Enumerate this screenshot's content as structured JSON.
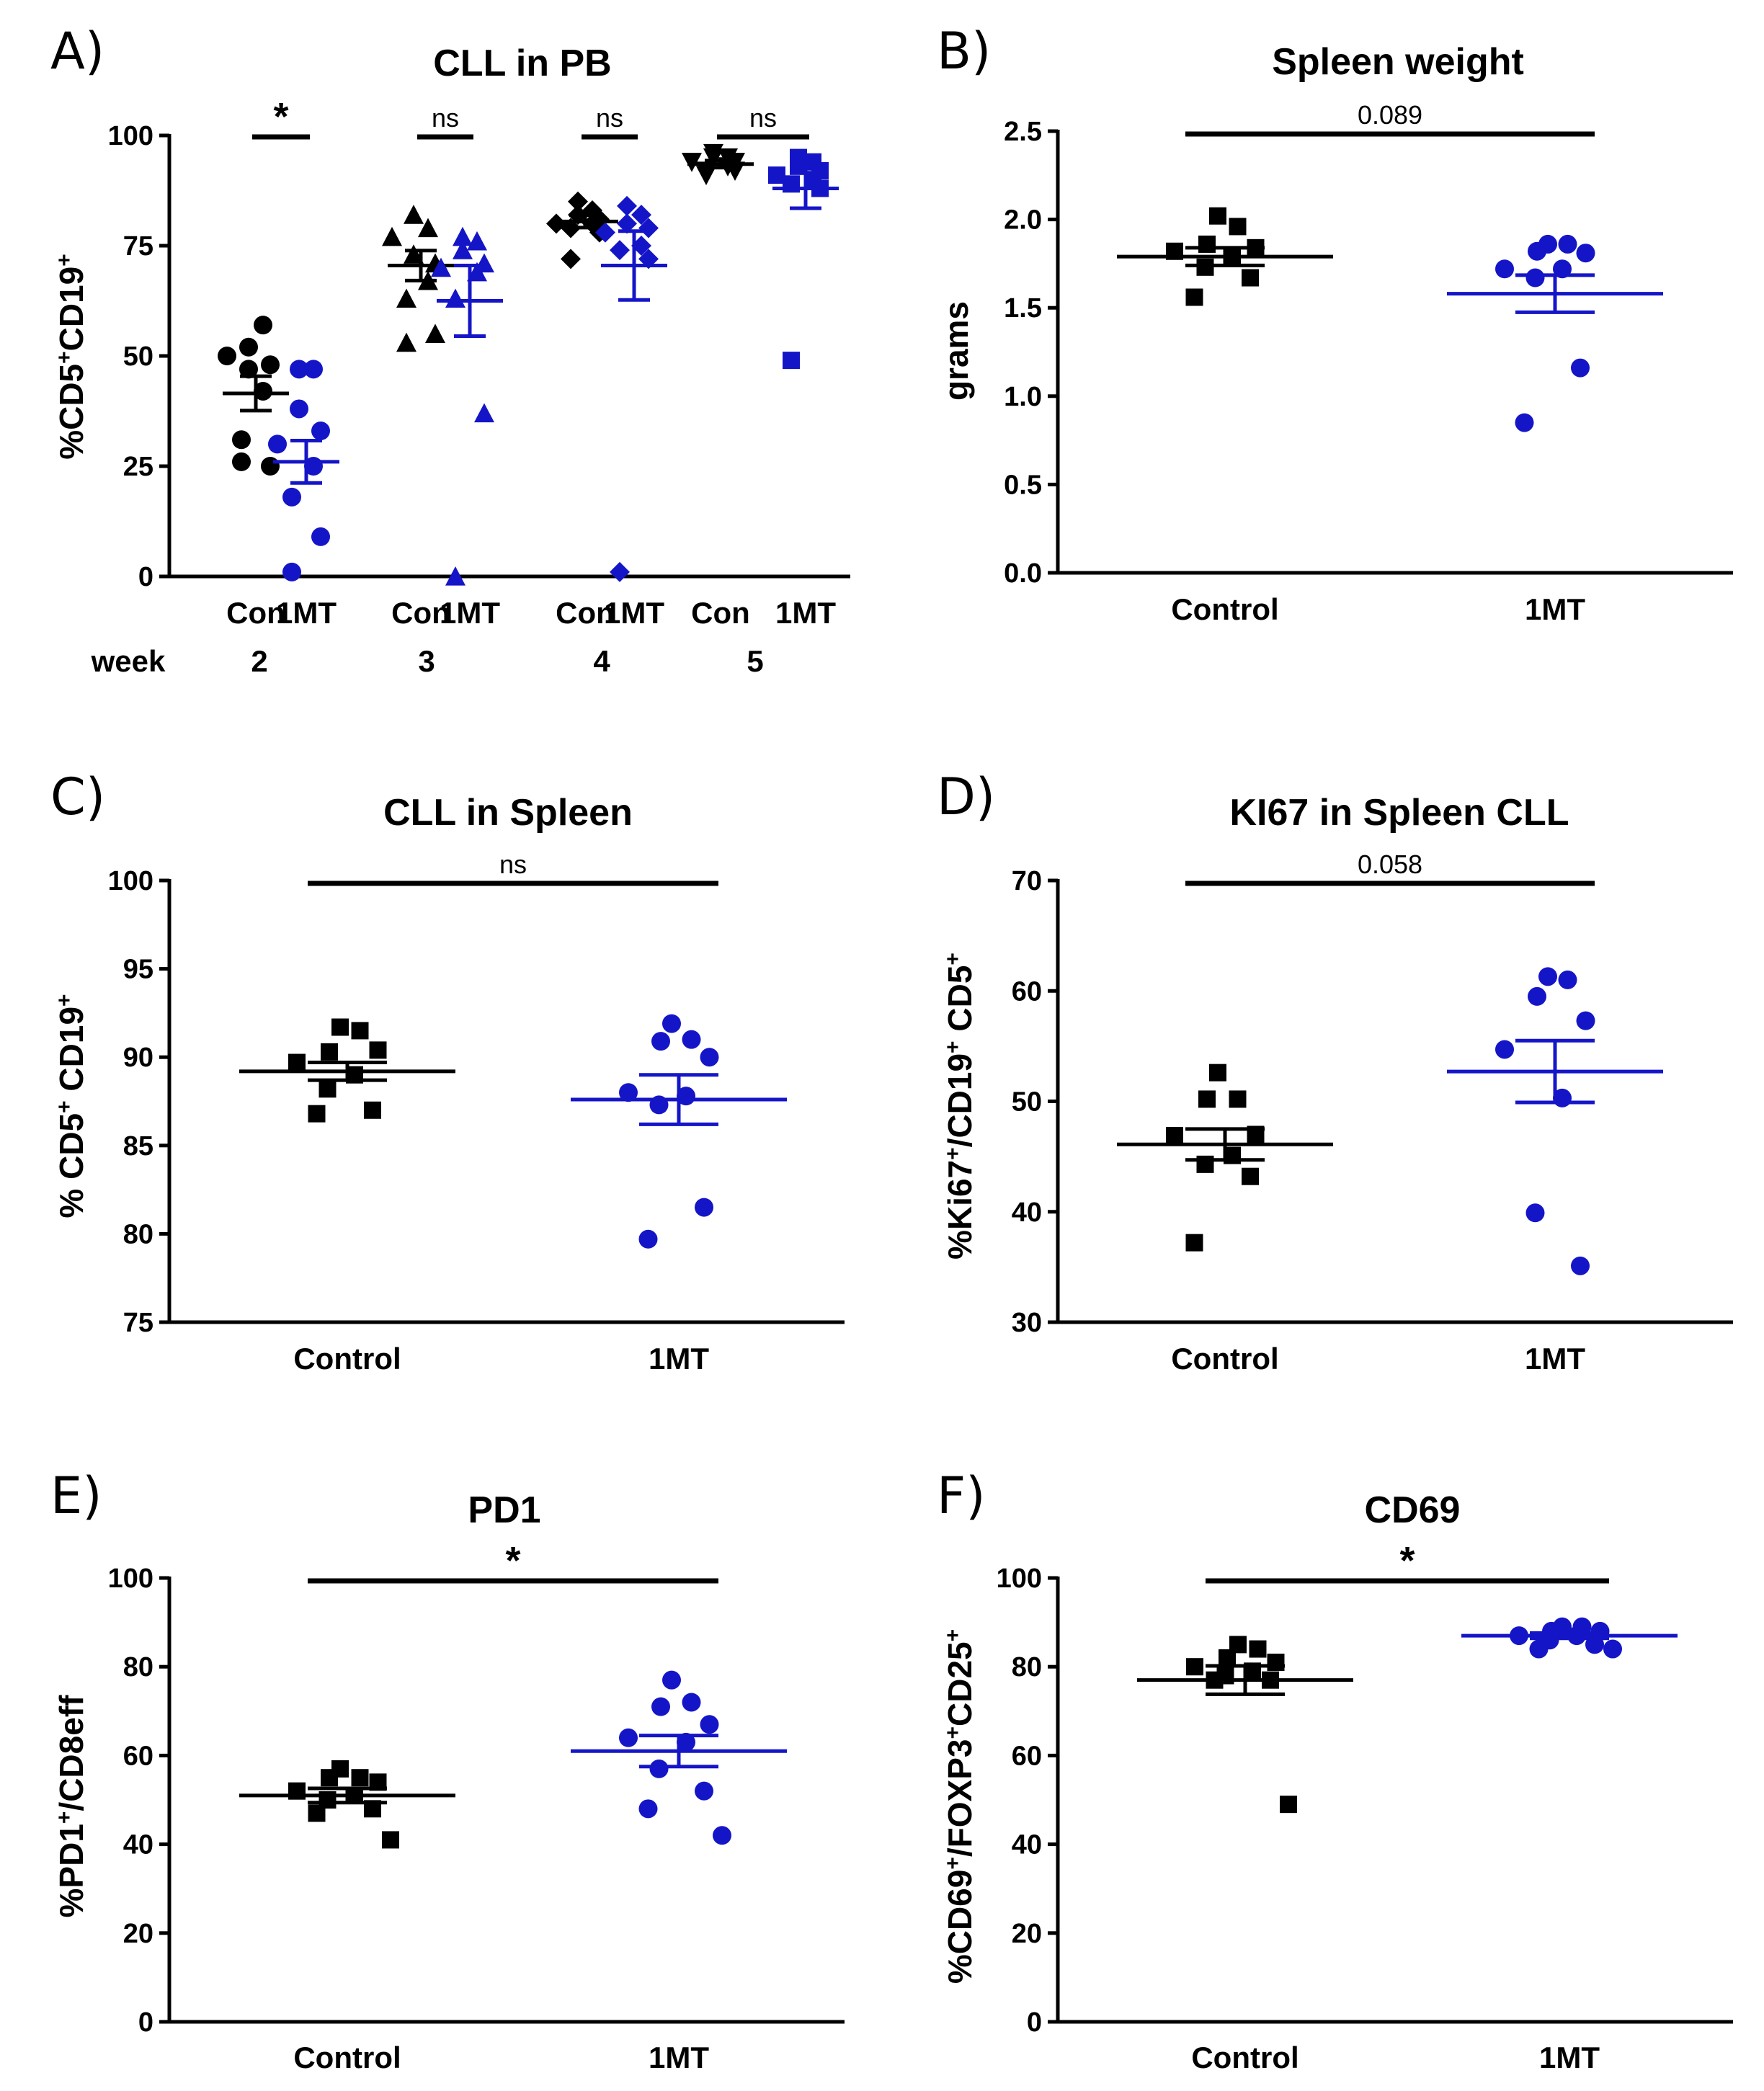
{
  "colors": {
    "control": "#000000",
    "treated": "#1515c8"
  },
  "chart_data": [
    {
      "id": "A",
      "panel": "A)",
      "type": "scatter",
      "title": "CLL in PB",
      "ylabel_main": "%CD5",
      "ylabel_sup1": "+",
      "ylabel_mid": "CD19",
      "ylabel_sup2": "+",
      "ylim": [
        0,
        100
      ],
      "yticks": [
        "0",
        "25",
        "50",
        "75",
        "100"
      ],
      "xlabel_prefix": "week",
      "groups": [
        {
          "label": "Con",
          "week": "2",
          "marker": "circle",
          "color": "control",
          "mean": 41.5,
          "sem": 3.9,
          "values": [
            52,
            57,
            47,
            48,
            50,
            42,
            31,
            25,
            26
          ]
        },
        {
          "label": "1MT",
          "week": "2",
          "marker": "circle",
          "color": "treated",
          "mean": 26.0,
          "sem": 4.8,
          "values": [
            47,
            47,
            38,
            33,
            30,
            25,
            18,
            9,
            1
          ]
        },
        {
          "label": "Con",
          "week": "3",
          "marker": "triangle",
          "color": "control",
          "mean": 70.5,
          "sem": 3.4,
          "values": [
            82,
            79,
            73,
            71,
            77,
            67,
            63,
            55,
            53
          ]
        },
        {
          "label": "1MT",
          "week": "3",
          "marker": "triangle",
          "color": "treated",
          "mean": 62.5,
          "sem": 8.0,
          "values": [
            77,
            76,
            74,
            71,
            70,
            69,
            63,
            37,
            0
          ]
        },
        {
          "label": "Con",
          "week": "4",
          "marker": "diamond",
          "color": "control",
          "mean": 80.5,
          "sem": 1.4,
          "values": [
            85,
            83,
            82,
            81,
            80,
            80,
            79,
            78,
            72
          ]
        },
        {
          "label": "1MT",
          "week": "4",
          "marker": "diamond",
          "color": "treated",
          "mean": 70.5,
          "sem": 7.8,
          "values": [
            84,
            82,
            80,
            79,
            78,
            75,
            74,
            72,
            1
          ]
        },
        {
          "label": "Con",
          "week": "5",
          "marker": "inverted-triangle",
          "color": "control",
          "mean": 93.5,
          "sem": 0.8,
          "values": [
            96,
            95,
            95,
            94,
            94,
            93,
            92,
            92,
            91
          ]
        },
        {
          "label": "1MT",
          "week": "5",
          "marker": "square",
          "color": "treated",
          "mean": 88.0,
          "sem": 4.5,
          "values": [
            95,
            94,
            93,
            92,
            91,
            90,
            89,
            88,
            49
          ]
        }
      ],
      "comparisons": [
        {
          "groups": [
            0,
            1
          ],
          "text": "*",
          "star": true,
          "y": 100
        },
        {
          "groups": [
            2,
            3
          ],
          "text": "ns",
          "star": false,
          "y": 100
        },
        {
          "groups": [
            4,
            5
          ],
          "text": "ns",
          "star": false,
          "y": 100
        },
        {
          "groups": [
            6,
            7
          ],
          "text": "ns",
          "star": false,
          "y": 100
        }
      ]
    },
    {
      "id": "B",
      "panel": "B)",
      "type": "scatter",
      "title": "Spleen weight",
      "ylabel_main": "grams",
      "ylim": [
        0,
        2.5
      ],
      "yticks": [
        "0.0",
        "0.5",
        "1.0",
        "1.5",
        "2.0",
        "2.5"
      ],
      "groups": [
        {
          "label": "Control",
          "marker": "square",
          "color": "control",
          "mean": 1.79,
          "sem": 0.05,
          "values": [
            2.02,
            1.96,
            1.86,
            1.84,
            1.82,
            1.79,
            1.73,
            1.67,
            1.56
          ]
        },
        {
          "label": "1MT",
          "marker": "circle",
          "color": "treated",
          "mean": 1.58,
          "sem": 0.105,
          "values": [
            1.86,
            1.86,
            1.82,
            1.81,
            1.72,
            1.72,
            1.67,
            1.16,
            0.85
          ]
        }
      ],
      "comparisons": [
        {
          "groups": [
            0,
            1
          ],
          "text": "0.089",
          "star": false,
          "y": 2.5
        }
      ]
    },
    {
      "id": "C",
      "panel": "C)",
      "type": "scatter",
      "title": "CLL in Spleen",
      "ylabel_main": "% CD5",
      "ylabel_sup1": "+",
      "ylabel_mid": " CD19",
      "ylabel_sup2": "+",
      "ylim": [
        75,
        100
      ],
      "yticks": [
        "75",
        "80",
        "85",
        "90",
        "95",
        "100"
      ],
      "groups": [
        {
          "label": "Control",
          "marker": "square",
          "color": "control",
          "mean": 89.2,
          "sem": 0.5,
          "values": [
            91.7,
            91.5,
            90.3,
            90.4,
            89.7,
            89.0,
            88.2,
            87.0,
            86.8
          ]
        },
        {
          "label": "1MT",
          "marker": "circle",
          "color": "treated",
          "mean": 87.6,
          "sem": 1.4,
          "values": [
            91.9,
            91.0,
            90.9,
            90.0,
            88.0,
            87.8,
            87.3,
            81.5,
            79.7
          ]
        }
      ],
      "comparisons": [
        {
          "groups": [
            0,
            1
          ],
          "text": "ns",
          "star": false,
          "y": 100
        }
      ]
    },
    {
      "id": "D",
      "panel": "D)",
      "type": "scatter",
      "title": "KI67 in Spleen CLL",
      "ylabel_main": "%Ki67",
      "ylabel_sup1": "+",
      "ylabel_mid": "/CD19",
      "ylabel_sup2": "+",
      "ylabel_tail": " CD5",
      "ylabel_sup3": "+",
      "ylim": [
        30,
        70
      ],
      "yticks": [
        "30",
        "40",
        "50",
        "60",
        "70"
      ],
      "groups": [
        {
          "label": "Control",
          "marker": "square",
          "color": "control",
          "mean": 46.1,
          "sem": 1.4,
          "values": [
            52.6,
            50.2,
            50.2,
            47.0,
            46.9,
            45.1,
            44.3,
            43.2,
            37.2
          ]
        },
        {
          "label": "1MT",
          "marker": "circle",
          "color": "treated",
          "mean": 52.7,
          "sem": 2.8,
          "values": [
            61.3,
            61.0,
            59.5,
            57.3,
            54.7,
            50.3,
            39.9,
            35.1
          ]
        }
      ],
      "comparisons": [
        {
          "groups": [
            0,
            1
          ],
          "text": "0.058",
          "star": false,
          "y": 70
        }
      ]
    },
    {
      "id": "E",
      "panel": "E)",
      "type": "scatter",
      "title": "PD1",
      "ylabel_main": "%PD1",
      "ylabel_sup1": "+",
      "ylabel_mid": "/CD8eff",
      "ylim": [
        0,
        100
      ],
      "yticks": [
        "0",
        "20",
        "40",
        "60",
        "80",
        "100"
      ],
      "groups": [
        {
          "label": "Control",
          "marker": "square",
          "color": "control",
          "mean": 51.0,
          "sem": 1.6,
          "values": [
            57,
            55,
            55,
            54,
            52,
            51,
            50,
            48,
            47,
            41
          ]
        },
        {
          "label": "1MT",
          "marker": "circle",
          "color": "treated",
          "mean": 61.0,
          "sem": 3.5,
          "values": [
            77,
            72,
            71,
            67,
            64,
            63,
            57,
            52,
            48,
            42
          ]
        }
      ],
      "comparisons": [
        {
          "groups": [
            0,
            1
          ],
          "text": "*",
          "star": true,
          "y": 100
        }
      ]
    },
    {
      "id": "F",
      "panel": "F)",
      "type": "scatter",
      "title": "CD69",
      "ylabel_main": "%CD69",
      "ylabel_sup1": "+",
      "ylabel_mid": "/FOXP3",
      "ylabel_sup2": "+",
      "ylabel_tail": "CD25",
      "ylabel_sup3": "+",
      "ylim": [
        0,
        100
      ],
      "yticks": [
        "0",
        "20",
        "40",
        "60",
        "80",
        "100"
      ],
      "groups": [
        {
          "label": "Control",
          "marker": "square",
          "color": "control",
          "mean": 77.0,
          "sem": 3.2,
          "values": [
            85,
            84,
            82,
            81,
            80,
            79,
            78,
            77,
            77,
            49
          ]
        },
        {
          "label": "1MT",
          "marker": "circle",
          "color": "treated",
          "mean": 87.0,
          "sem": 0.6,
          "values": [
            89,
            89,
            88,
            88,
            87,
            87,
            86,
            85,
            84,
            84
          ]
        }
      ],
      "comparisons": [
        {
          "groups": [
            0,
            1
          ],
          "text": "*",
          "star": true,
          "y": 100
        }
      ]
    }
  ]
}
